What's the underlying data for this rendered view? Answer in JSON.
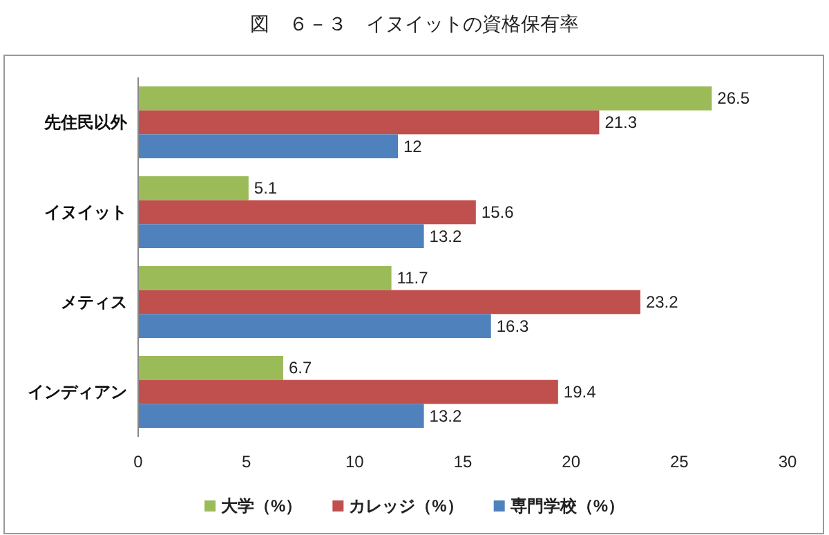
{
  "chart_data": {
    "type": "bar",
    "orientation": "horizontal",
    "title": "図　６－３　イヌイットの資格保有率",
    "categories": [
      "先住民以外",
      "イヌイット",
      "メティス",
      "インディアン"
    ],
    "series": [
      {
        "name": "大学（%）",
        "color": "#9bbb59",
        "values": [
          26.5,
          5.1,
          11.7,
          6.7
        ]
      },
      {
        "name": "カレッジ（%）",
        "color": "#c0504d",
        "values": [
          21.3,
          15.6,
          23.2,
          19.4
        ]
      },
      {
        "name": "専門学校（%）",
        "color": "#4f81bd",
        "values": [
          12,
          13.2,
          16.3,
          13.2
        ]
      }
    ],
    "xlim": [
      0,
      30
    ],
    "xticks": [
      0,
      5,
      10,
      15,
      20,
      25,
      30
    ],
    "data_labels": true,
    "grid": false,
    "legend": "bottom"
  }
}
